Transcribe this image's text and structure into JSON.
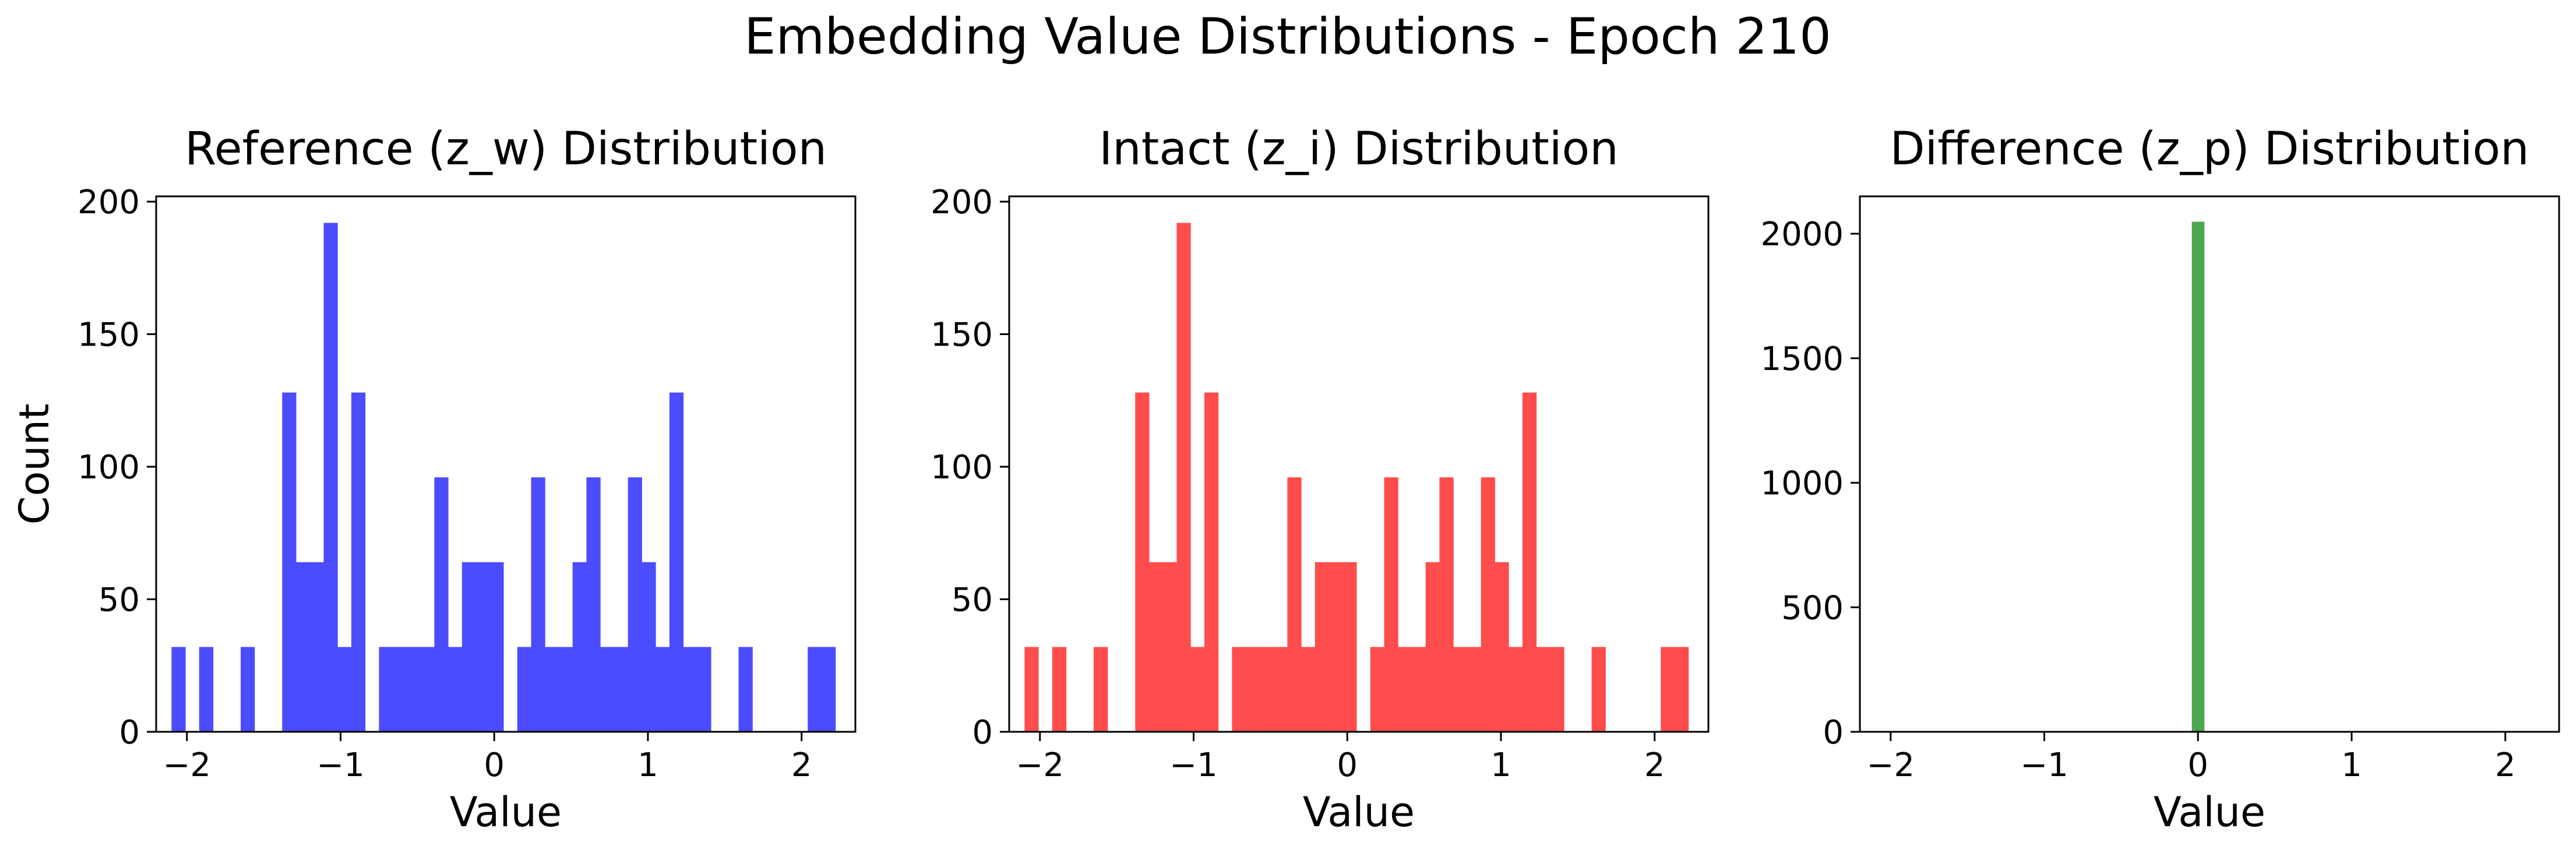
{
  "figure": {
    "title": "Embedding Value Distributions - Epoch 210"
  },
  "chart_data": [
    {
      "type": "bar",
      "title": "Reference (z_w) Distribution",
      "xlabel": "Value",
      "ylabel": "Count",
      "color": "#4c4cff",
      "xlim": [
        -2.2,
        2.35
      ],
      "ylim": [
        0,
        202
      ],
      "xticks": [
        -2,
        -1,
        0,
        1,
        2
      ],
      "xtick_labels": [
        "−2",
        "−1",
        "0",
        "1",
        "2"
      ],
      "yticks": [
        0,
        50,
        100,
        150,
        200
      ],
      "ytick_labels": [
        "0",
        "50",
        "100",
        "150",
        "200"
      ],
      "bin_edges_start": -2.1,
      "bin_width": 0.09,
      "counts": [
        32,
        0,
        32,
        0,
        0,
        32,
        0,
        0,
        128,
        64,
        64,
        192,
        32,
        128,
        0,
        32,
        32,
        32,
        32,
        96,
        32,
        64,
        64,
        64,
        0,
        32,
        96,
        32,
        32,
        64,
        96,
        32,
        32,
        96,
        64,
        32,
        128,
        32,
        32,
        0,
        0,
        32,
        0,
        0,
        0,
        0,
        32,
        32
      ]
    },
    {
      "type": "bar",
      "title": "Intact (z_i) Distribution",
      "xlabel": "Value",
      "ylabel": "",
      "color": "#ff4c4c",
      "xlim": [
        -2.2,
        2.35
      ],
      "ylim": [
        0,
        202
      ],
      "xticks": [
        -2,
        -1,
        0,
        1,
        2
      ],
      "xtick_labels": [
        "−2",
        "−1",
        "0",
        "1",
        "2"
      ],
      "yticks": [
        0,
        50,
        100,
        150,
        200
      ],
      "ytick_labels": [
        "0",
        "50",
        "100",
        "150",
        "200"
      ],
      "bin_edges_start": -2.1,
      "bin_width": 0.09,
      "counts": [
        32,
        0,
        32,
        0,
        0,
        32,
        0,
        0,
        128,
        64,
        64,
        192,
        32,
        128,
        0,
        32,
        32,
        32,
        32,
        96,
        32,
        64,
        64,
        64,
        0,
        32,
        96,
        32,
        32,
        64,
        96,
        32,
        32,
        96,
        64,
        32,
        128,
        32,
        32,
        0,
        0,
        32,
        0,
        0,
        0,
        0,
        32,
        32
      ]
    },
    {
      "type": "bar",
      "title": "Difference (z_p) Distribution",
      "xlabel": "Value",
      "ylabel": "",
      "color": "#4ca64c",
      "xlim": [
        -2.2,
        2.35
      ],
      "ylim": [
        0,
        2150
      ],
      "xticks": [
        -2,
        -1,
        0,
        1,
        2
      ],
      "xtick_labels": [
        "−2",
        "−1",
        "0",
        "1",
        "2"
      ],
      "yticks": [
        0,
        500,
        1000,
        1500,
        2000
      ],
      "ytick_labels": [
        "0",
        "500",
        "1000",
        "1500",
        "2000"
      ],
      "bin_edges_start": -0.04,
      "bin_width": 0.08,
      "counts": [
        2048
      ]
    }
  ]
}
